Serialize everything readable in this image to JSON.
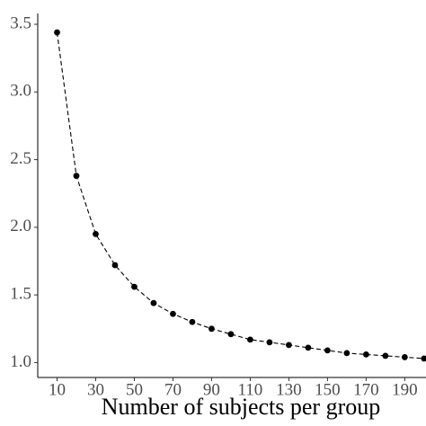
{
  "chart_data": {
    "type": "line",
    "x_label": "Number of subjects per group",
    "x": [
      10,
      20,
      30,
      40,
      50,
      60,
      70,
      80,
      90,
      100,
      110,
      120,
      130,
      140,
      150,
      160,
      170,
      180,
      190,
      200
    ],
    "series": [
      {
        "color": "#000000",
        "values": [
          3.44,
          2.38,
          1.95,
          1.72,
          1.56,
          1.44,
          1.36,
          1.3,
          1.25,
          1.21,
          1.17,
          1.15,
          1.13,
          1.11,
          1.09,
          1.07,
          1.06,
          1.05,
          1.04,
          1.03
        ]
      }
    ],
    "xlim": [
      0,
      201
    ],
    "ylim": [
      0.89,
      3.58
    ],
    "xticks": [
      10,
      30,
      50,
      70,
      90,
      110,
      130,
      150,
      170,
      190
    ],
    "yticks": [
      {
        "value": 1,
        "label": "1.0"
      },
      1.5,
      {
        "value": 2,
        "label": "2.0"
      },
      2.5,
      {
        "value": 3,
        "label": "3.0"
      },
      3.5
    ],
    "grid": false,
    "line_style": "dashed"
  }
}
